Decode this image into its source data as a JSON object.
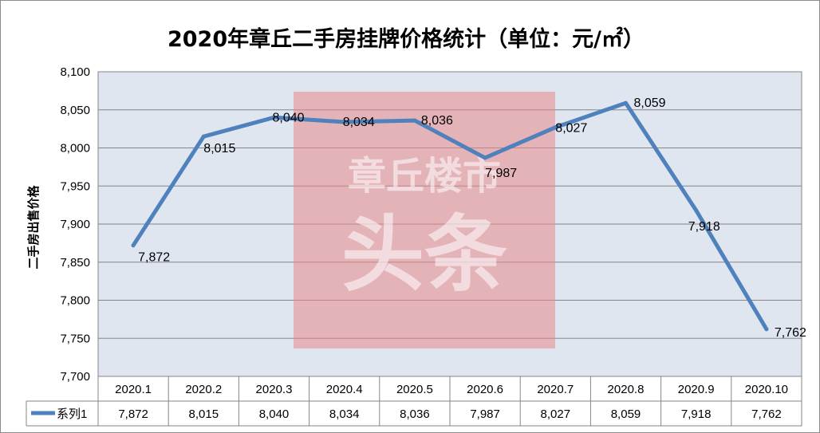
{
  "chart_data": {
    "type": "line",
    "title": "2020年章丘二手房挂牌价格统计（单位：元/㎡）",
    "ylabel": "二手房出售价格",
    "xlabel": "",
    "categories": [
      "2020.1",
      "2020.2",
      "2020.3",
      "2020.4",
      "2020.5",
      "2020.6",
      "2020.7",
      "2020.8",
      "2020.9",
      "2020.10"
    ],
    "series": [
      {
        "name": "系列1",
        "values": [
          7872,
          8015,
          8040,
          8034,
          8036,
          7987,
          8027,
          8059,
          7918,
          7762
        ]
      }
    ],
    "data_labels": [
      "7,872",
      "8,015",
      "8,040",
      "8,034",
      "8,036",
      "7,987",
      "8,027",
      "8,059",
      "7,918",
      "7,762"
    ],
    "ylim": [
      7700,
      8100
    ],
    "yticks": [
      7700,
      7750,
      7800,
      7850,
      7900,
      7950,
      8000,
      8050,
      8100
    ],
    "ytick_labels": [
      "7,700",
      "7,750",
      "7,800",
      "7,850",
      "7,900",
      "7,950",
      "8,000",
      "8,050",
      "8,100"
    ],
    "grid": true,
    "data_table": true,
    "series_color": "#4f81bd",
    "plot_background": "#dfe6f0"
  },
  "watermark": {
    "line1": "章丘楼市",
    "line2": "头条",
    "color": "#e8898a"
  }
}
